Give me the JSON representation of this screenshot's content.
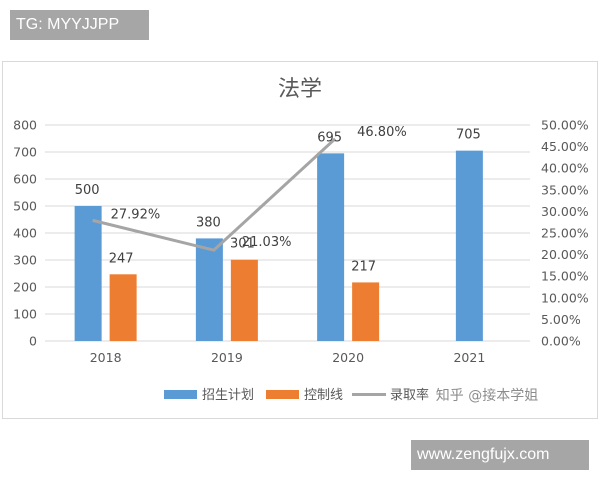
{
  "header_tag": "TG: MYYJJPP",
  "footer_tag": "www.zengfujx.com",
  "watermark": "知乎 @接本学姐",
  "colors": {
    "plan": "#5b9bd5",
    "control": "#ed7d31",
    "rate": "#a5a5a5",
    "grid": "#d9d9d9",
    "text": "#595959"
  },
  "chart_data": {
    "type": "bar",
    "title": "法学",
    "categories": [
      "2018",
      "2019",
      "2020",
      "2021"
    ],
    "series": [
      {
        "name": "招生计划",
        "type": "bar",
        "axis": "left",
        "values": [
          500,
          380,
          695,
          705
        ]
      },
      {
        "name": "控制线",
        "type": "bar",
        "axis": "left",
        "values": [
          247,
          301,
          217,
          null
        ]
      },
      {
        "name": "录取率",
        "type": "line",
        "axis": "right",
        "values": [
          27.92,
          21.03,
          46.8,
          null
        ],
        "labels": [
          "27.92%",
          "21.03%",
          "46.80%",
          null
        ]
      }
    ],
    "ylim": [
      0,
      800
    ],
    "yticks": [
      "0",
      "100",
      "200",
      "300",
      "400",
      "500",
      "600",
      "700",
      "800"
    ],
    "y2lim": [
      0,
      50
    ],
    "y2ticks": [
      "0.00%",
      "5.00%",
      "10.00%",
      "15.00%",
      "20.00%",
      "25.00%",
      "30.00%",
      "35.00%",
      "40.00%",
      "45.00%",
      "50.00%"
    ],
    "xlabel": "",
    "ylabel": "",
    "grid": true,
    "legend_position": "bottom"
  }
}
